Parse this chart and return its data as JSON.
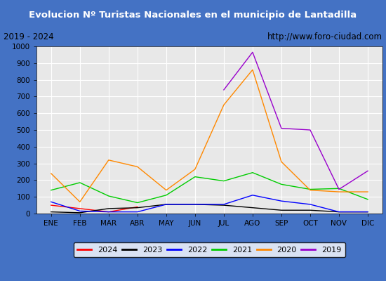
{
  "title": "Evolucion Nº Turistas Nacionales en el municipio de Lantadilla",
  "subtitle_left": "2019 - 2024",
  "subtitle_right": "http://www.foro-ciudad.com",
  "months": [
    "ENE",
    "FEB",
    "MAR",
    "ABR",
    "MAY",
    "JUN",
    "JUL",
    "AGO",
    "SEP",
    "OCT",
    "NOV",
    "DIC"
  ],
  "ylim": [
    0,
    1000
  ],
  "yticks": [
    0,
    100,
    200,
    300,
    400,
    500,
    600,
    700,
    800,
    900,
    1000
  ],
  "series": {
    "2024": {
      "color": "#ff0000",
      "data": [
        50,
        30,
        10,
        40,
        null,
        null,
        null,
        null,
        null,
        null,
        null,
        null
      ]
    },
    "2023": {
      "color": "#000000",
      "data": [
        10,
        5,
        30,
        35,
        55,
        55,
        50,
        35,
        20,
        20,
        10,
        10
      ]
    },
    "2022": {
      "color": "#0000ff",
      "data": [
        70,
        15,
        10,
        10,
        55,
        55,
        55,
        110,
        75,
        55,
        10,
        10
      ]
    },
    "2021": {
      "color": "#00cc00",
      "data": [
        140,
        185,
        105,
        65,
        110,
        220,
        195,
        245,
        175,
        145,
        150,
        85
      ]
    },
    "2020": {
      "color": "#ff8800",
      "data": [
        240,
        70,
        320,
        280,
        140,
        265,
        650,
        860,
        310,
        140,
        130,
        130
      ]
    },
    "2019": {
      "color": "#9900cc",
      "data": [
        null,
        null,
        null,
        null,
        null,
        null,
        740,
        965,
        510,
        500,
        145,
        255
      ]
    }
  },
  "title_bg_color": "#4472c4",
  "title_font_color": "white",
  "subtitle_bg_color": "#e8e8e8",
  "plot_bg_color": "#e8e8e8",
  "grid_color": "white",
  "outer_bg_color": "#4472c4",
  "legend_years": [
    "2024",
    "2023",
    "2022",
    "2021",
    "2020",
    "2019"
  ],
  "legend_colors": [
    "#ff0000",
    "#000000",
    "#0000ff",
    "#00cc00",
    "#ff8800",
    "#9900cc"
  ]
}
